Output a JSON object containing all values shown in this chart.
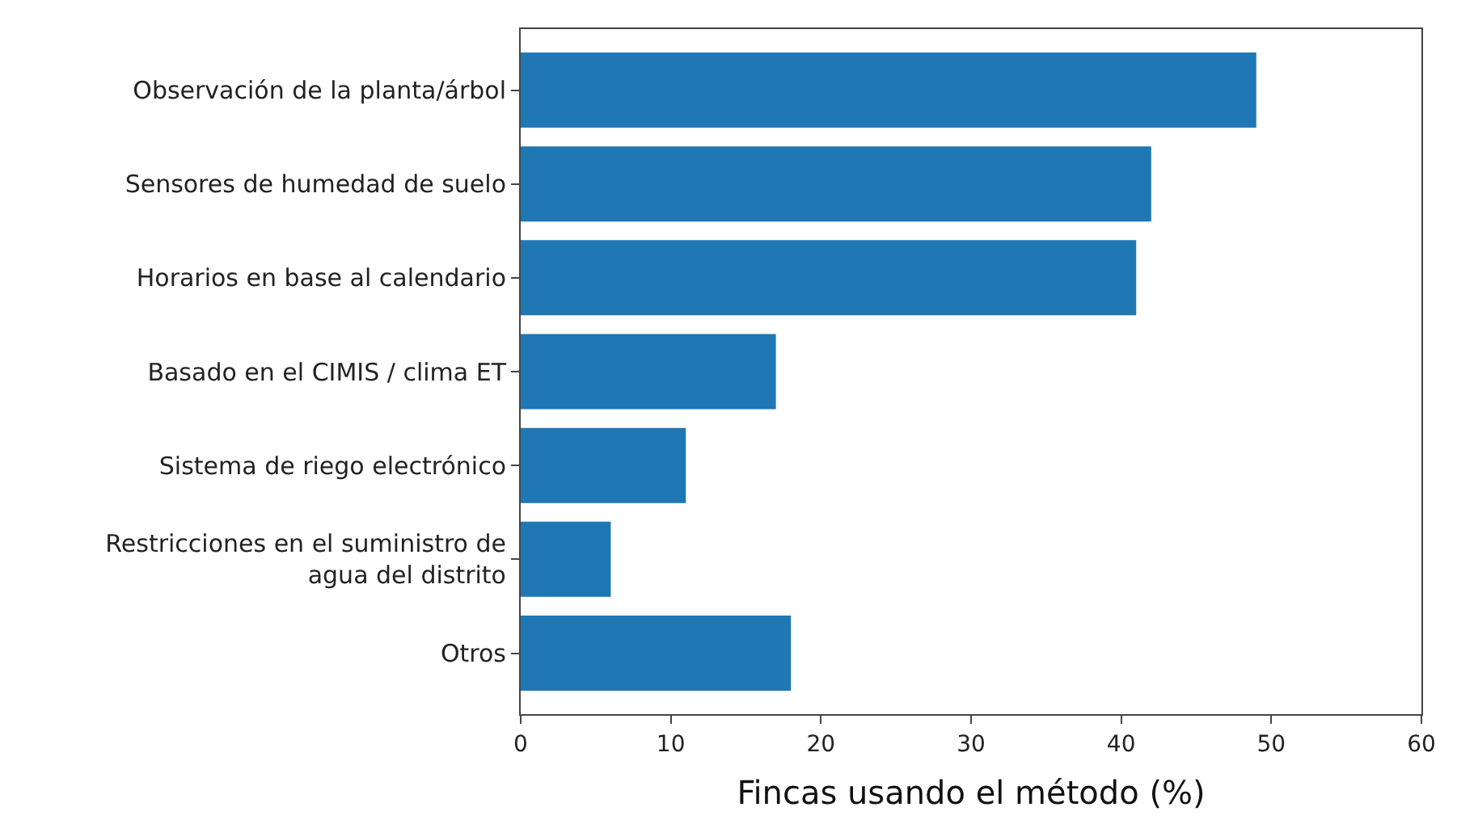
{
  "chart_data": {
    "type": "bar",
    "orientation": "horizontal",
    "xlabel": "Fincas usando el método (%)",
    "categories": [
      "Observación de la planta/árbol",
      "Sensores de humedad de suelo",
      "Horarios en base al calendario",
      "Basado en el CIMIS / clima ET",
      "Sistema de riego electrónico",
      "Restricciones en el suministro de\nagua del distrito",
      "Otros"
    ],
    "values": [
      49,
      42,
      41,
      17,
      11,
      6,
      18
    ],
    "color": "#1f77b4",
    "xlim": [
      0,
      60
    ],
    "xticks": [
      0,
      10,
      20,
      30,
      40,
      50,
      60
    ],
    "legend": false
  }
}
